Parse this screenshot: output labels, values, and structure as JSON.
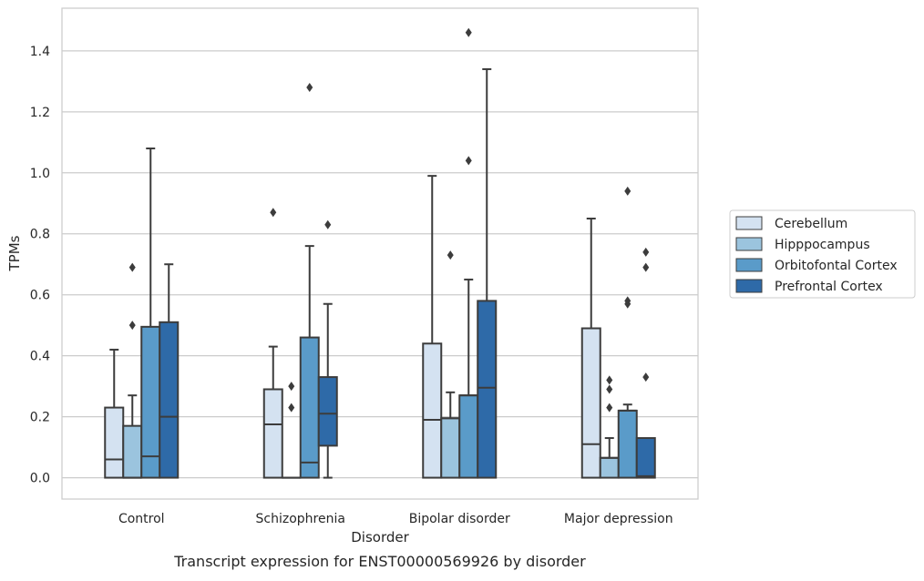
{
  "chart_data": {
    "type": "box",
    "caption": "Transcript expression for ENST00000569926 by disorder",
    "xlabel": "Disorder",
    "ylabel": "TPMs",
    "ylim": [
      -0.07,
      1.54
    ],
    "yticks": [
      0.0,
      0.2,
      0.4,
      0.6,
      0.8,
      1.0,
      1.2,
      1.4
    ],
    "ytick_labels": [
      "0.0",
      "0.2",
      "0.4",
      "0.6",
      "0.8",
      "1.0",
      "1.2",
      "1.4"
    ],
    "grid": "horizontal",
    "legend_position": "right",
    "categories": [
      "Control",
      "Schizophrenia",
      "Bipolar disorder",
      "Major depression"
    ],
    "series": [
      {
        "name": "Cerebellum",
        "color": "#d4e2f1",
        "boxes": [
          {
            "whisker_low": 0.0,
            "q1": 0.0,
            "median": 0.06,
            "q3": 0.23,
            "whisker_high": 0.42,
            "outliers": []
          },
          {
            "whisker_low": 0.0,
            "q1": 0.0,
            "median": 0.175,
            "q3": 0.29,
            "whisker_high": 0.43,
            "outliers": [
              0.87
            ]
          },
          {
            "whisker_low": 0.0,
            "q1": 0.0,
            "median": 0.19,
            "q3": 0.44,
            "whisker_high": 0.99,
            "outliers": []
          },
          {
            "whisker_low": 0.0,
            "q1": 0.0,
            "median": 0.11,
            "q3": 0.49,
            "whisker_high": 0.85,
            "outliers": []
          }
        ]
      },
      {
        "name": "Hipppocampus",
        "color": "#9bc4de",
        "boxes": [
          {
            "whisker_low": 0.0,
            "q1": 0.0,
            "median": 0.0,
            "q3": 0.17,
            "whisker_high": 0.27,
            "outliers": [
              0.5,
              0.69
            ]
          },
          {
            "whisker_low": 0.0,
            "q1": 0.0,
            "median": 0.0,
            "q3": 0.0,
            "whisker_high": 0.0,
            "outliers": [
              0.23,
              0.3
            ]
          },
          {
            "whisker_low": 0.0,
            "q1": 0.0,
            "median": 0.195,
            "q3": 0.195,
            "whisker_high": 0.28,
            "outliers": [
              0.73
            ]
          },
          {
            "whisker_low": 0.0,
            "q1": 0.0,
            "median": 0.065,
            "q3": 0.065,
            "whisker_high": 0.13,
            "outliers": [
              0.23,
              0.29,
              0.32
            ]
          }
        ]
      },
      {
        "name": "Orbitofontal Cortex",
        "color": "#5a9bc9",
        "boxes": [
          {
            "whisker_low": 0.0,
            "q1": 0.0,
            "median": 0.07,
            "q3": 0.495,
            "whisker_high": 1.08,
            "outliers": []
          },
          {
            "whisker_low": 0.0,
            "q1": 0.0,
            "median": 0.05,
            "q3": 0.46,
            "whisker_high": 0.76,
            "outliers": [
              1.28
            ]
          },
          {
            "whisker_low": 0.0,
            "q1": 0.0,
            "median": 0.27,
            "q3": 0.27,
            "whisker_high": 0.65,
            "outliers": [
              1.04,
              1.46
            ]
          },
          {
            "whisker_low": 0.0,
            "q1": 0.0,
            "median": 0.22,
            "q3": 0.22,
            "whisker_high": 0.24,
            "outliers": [
              0.57,
              0.58,
              0.94
            ]
          }
        ]
      },
      {
        "name": "Prefrontal Cortex",
        "color": "#2e6aa8",
        "boxes": [
          {
            "whisker_low": 0.0,
            "q1": 0.0,
            "median": 0.2,
            "q3": 0.51,
            "whisker_high": 0.7,
            "outliers": []
          },
          {
            "whisker_low": 0.0,
            "q1": 0.105,
            "median": 0.21,
            "q3": 0.33,
            "whisker_high": 0.57,
            "outliers": [
              0.83
            ]
          },
          {
            "whisker_low": 0.0,
            "q1": 0.0,
            "median": 0.295,
            "q3": 0.58,
            "whisker_high": 1.34,
            "outliers": []
          },
          {
            "whisker_low": 0.0,
            "q1": 0.0,
            "median": 0.005,
            "q3": 0.13,
            "whisker_high": 0.13,
            "outliers": [
              0.33,
              0.69,
              0.74
            ]
          }
        ]
      }
    ]
  }
}
